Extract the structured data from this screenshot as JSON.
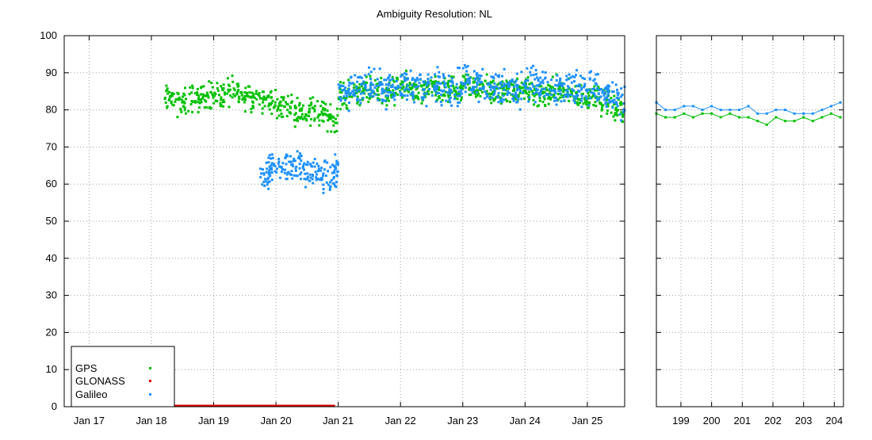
{
  "chart_data": {
    "type": "scatter",
    "title": "Ambiguity Resolution: NL",
    "xlabel": "",
    "ylabel": "",
    "ylim": [
      0,
      100
    ],
    "y_ticks": [
      0,
      10,
      20,
      30,
      40,
      50,
      60,
      70,
      80,
      90,
      100
    ],
    "grid": true,
    "legend_position": "bottom-left",
    "colors": {
      "GPS": "#00c000",
      "GLONASS": "#e00000",
      "Galileo": "#1e90ff"
    },
    "panels": [
      {
        "id": "main",
        "xlim": [
          16.6,
          25.6
        ],
        "x_tick_labels": [
          {
            "x": 17,
            "label": "Jan 17"
          },
          {
            "x": 18,
            "label": "Jan 18"
          },
          {
            "x": 19,
            "label": "Jan 19"
          },
          {
            "x": 20,
            "label": "Jan 20"
          },
          {
            "x": 21,
            "label": "Jan 21"
          },
          {
            "x": 22,
            "label": "Jan 22"
          },
          {
            "x": 23,
            "label": "Jan 23"
          },
          {
            "x": 24,
            "label": "Jan 24"
          },
          {
            "x": 25,
            "label": "Jan 25"
          }
        ],
        "series": [
          {
            "name": "GPS",
            "x": [
              18.2,
              18.4,
              18.6,
              18.8,
              19.0,
              19.2,
              19.4,
              19.6,
              19.8,
              20.0,
              20.2,
              20.4,
              20.6,
              20.8,
              21.0,
              21.2,
              21.4,
              21.6,
              21.8,
              22.0,
              22.2,
              22.4,
              22.6,
              22.8,
              23.0,
              23.2,
              23.4,
              23.6,
              23.8,
              24.0,
              24.2,
              24.4,
              24.6,
              24.8,
              25.0,
              25.2,
              25.4,
              25.6
            ],
            "y": [
              83,
              82,
              83,
              84,
              84,
              85,
              84,
              83,
              82,
              81,
              80,
              80,
              79,
              78,
              84,
              85,
              85,
              85,
              85,
              86,
              85,
              85,
              85,
              85,
              86,
              86,
              85,
              85,
              85,
              85,
              84,
              85,
              84,
              84,
              84,
              82,
              80,
              79
            ]
          },
          {
            "name": "GLONASS",
            "x": [
              18.2,
              20.95
            ],
            "y": [
              0,
              0
            ]
          },
          {
            "name": "Galileo",
            "x": [
              19.75,
              19.9,
              20.1,
              20.3,
              20.5,
              20.7,
              20.9,
              21.0,
              21.2,
              21.4,
              21.6,
              21.8,
              22.0,
              22.2,
              22.4,
              22.6,
              22.8,
              23.0,
              23.2,
              23.4,
              23.6,
              23.8,
              24.0,
              24.2,
              24.4,
              24.6,
              24.8,
              25.0,
              25.2,
              25.4,
              25.6
            ],
            "y": [
              63,
              65,
              65,
              64,
              63,
              62,
              63,
              85,
              86,
              86,
              86,
              86,
              87,
              86,
              86,
              86,
              86,
              87,
              87,
              86,
              86,
              86,
              87,
              87,
              86,
              86,
              86,
              86,
              84,
              82,
              82
            ]
          }
        ]
      },
      {
        "id": "right",
        "xlim": [
          198.2,
          204.3
        ],
        "x_tick_labels": [
          {
            "x": 199,
            "label": "199"
          },
          {
            "x": 200,
            "label": "200"
          },
          {
            "x": 201,
            "label": "201"
          },
          {
            "x": 202,
            "label": "202"
          },
          {
            "x": 203,
            "label": "203"
          },
          {
            "x": 204,
            "label": "204"
          }
        ],
        "series": [
          {
            "name": "GPS",
            "x": [
              198.2,
              198.5,
              198.8,
              199.1,
              199.4,
              199.7,
              200.0,
              200.3,
              200.6,
              200.9,
              201.2,
              201.5,
              201.8,
              202.1,
              202.4,
              202.7,
              203.0,
              203.3,
              203.6,
              203.9,
              204.2
            ],
            "y": [
              79,
              78,
              78,
              79,
              78,
              79,
              79,
              78,
              79,
              78,
              78,
              77,
              76,
              78,
              77,
              77,
              78,
              77,
              78,
              79,
              78
            ]
          },
          {
            "name": "Galileo",
            "x": [
              198.2,
              198.5,
              198.8,
              199.1,
              199.4,
              199.7,
              200.0,
              200.3,
              200.6,
              200.9,
              201.2,
              201.5,
              201.8,
              202.1,
              202.4,
              202.7,
              203.0,
              203.3,
              203.6,
              203.9,
              204.2
            ],
            "y": [
              82,
              80,
              80,
              81,
              81,
              80,
              81,
              80,
              80,
              80,
              81,
              79,
              79,
              80,
              80,
              79,
              79,
              79,
              80,
              81,
              82
            ]
          }
        ]
      }
    ],
    "legend": [
      {
        "name": "GPS"
      },
      {
        "name": "GLONASS"
      },
      {
        "name": "Galileo"
      }
    ]
  }
}
